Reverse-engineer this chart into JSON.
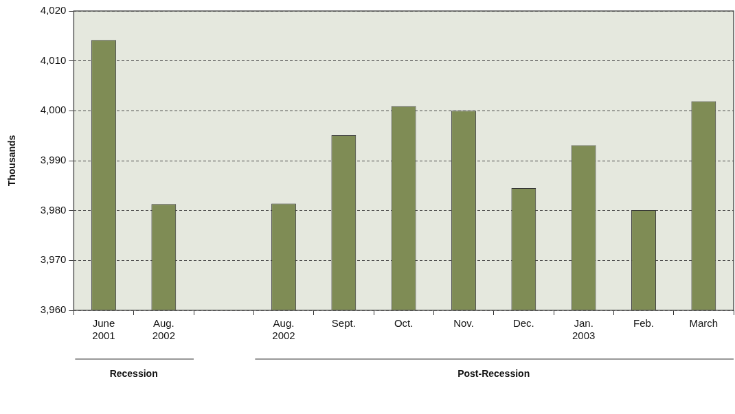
{
  "chart_data": {
    "type": "bar",
    "ylabel": "Thousands",
    "categories": [
      "June 2001",
      "Aug. 2002",
      null,
      "Aug. 2002",
      "Sept.",
      "Oct.",
      "Nov.",
      "Dec.",
      "Jan. 2003",
      "Feb.",
      "March"
    ],
    "values": [
      4014.2,
      3981.3,
      null,
      3981.4,
      3995.1,
      4000.9,
      4000.0,
      3984.5,
      3993.1,
      3980.1,
      4001.9
    ],
    "color": "#7f8c55",
    "ylim": [
      3960,
      4020
    ],
    "yticks": [
      {
        "value": 3960,
        "label": "3,960"
      },
      {
        "value": 3970,
        "label": "3,970"
      },
      {
        "value": 3980,
        "label": "3,980"
      },
      {
        "value": 3990,
        "label": "3,990"
      },
      {
        "value": 4000,
        "label": "4,000"
      },
      {
        "value": 4010,
        "label": "4,010"
      },
      {
        "value": 4020,
        "label": "4,020"
      }
    ],
    "annotations": [
      "Recession",
      "Post-Recession"
    ],
    "grid": "y",
    "legend": false
  }
}
